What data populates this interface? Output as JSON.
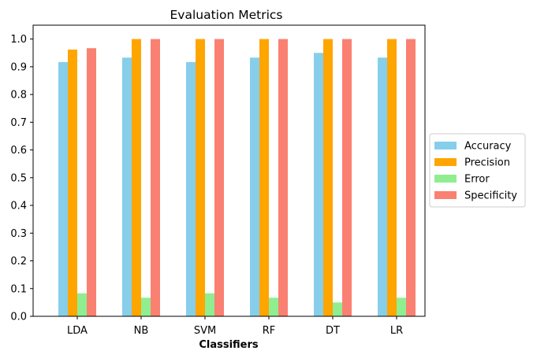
{
  "chart_data": {
    "type": "bar",
    "title": "Evaluation Metrics",
    "xlabel": "Classifiers",
    "ylabel": "",
    "ylim": [
      0,
      1.05
    ],
    "yticks": [
      "0.0",
      "0.1",
      "0.2",
      "0.3",
      "0.4",
      "0.5",
      "0.6",
      "0.7",
      "0.8",
      "0.9",
      "1.0"
    ],
    "categories": [
      "LDA",
      "NB",
      "SVM",
      "RF",
      "DT",
      "LR"
    ],
    "series": [
      {
        "name": "Accuracy",
        "color": "#87ceeb",
        "values": [
          0.917,
          0.933,
          0.917,
          0.933,
          0.95,
          0.933
        ]
      },
      {
        "name": "Precision",
        "color": "#ffa500",
        "values": [
          0.962,
          1.0,
          1.0,
          1.0,
          1.0,
          1.0
        ]
      },
      {
        "name": "Error",
        "color": "#90ee90",
        "values": [
          0.083,
          0.067,
          0.083,
          0.067,
          0.05,
          0.067
        ]
      },
      {
        "name": "Specificity",
        "color": "#fa8072",
        "values": [
          0.967,
          1.0,
          1.0,
          1.0,
          1.0,
          1.0
        ]
      }
    ],
    "grid": false,
    "legend_position": "center-right, outside plot"
  }
}
